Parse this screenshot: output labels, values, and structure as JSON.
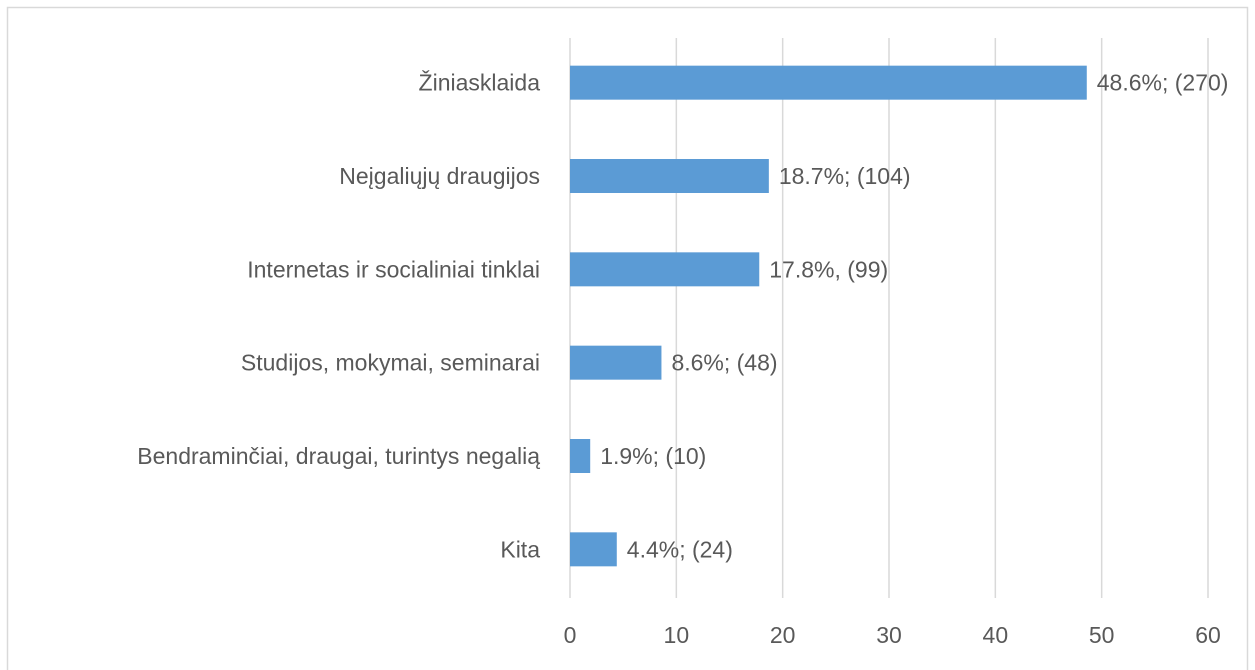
{
  "chart_data": {
    "type": "bar",
    "orientation": "horizontal",
    "categories": [
      "Žiniasklaida",
      "Neįgaliųjų draugijos",
      "Internetas ir socialiniai tinklai",
      "Studijos, mokymai, seminarai",
      "Bendraminčiai, draugai, turintys negalią",
      "Kita"
    ],
    "values": [
      48.6,
      18.7,
      17.8,
      8.6,
      1.9,
      4.4
    ],
    "value_labels": [
      "48.6%; (270)",
      "18.7%; (104)",
      "17.8%, (99)",
      "8.6%; (48)",
      "1.9%; (10)",
      "4.4%; (24)"
    ],
    "color": "#5b9bd5",
    "xlim": [
      0,
      60
    ],
    "xticks": [
      0,
      10,
      20,
      30,
      40,
      50,
      60
    ],
    "grid": true
  }
}
